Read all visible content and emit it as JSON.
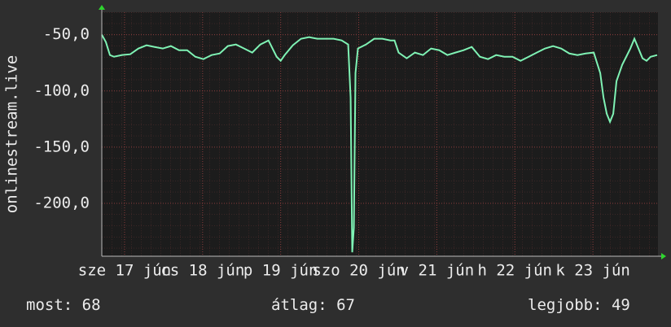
{
  "chart_data": {
    "type": "line",
    "y_label": "onlinestream.live",
    "xlim": [
      0,
      171
    ],
    "xticks": [
      {
        "value": 7,
        "label": "sze 17 jún"
      },
      {
        "value": 31,
        "label": "cs 18 jún"
      },
      {
        "value": 55,
        "label": "p 19 jún"
      },
      {
        "value": 79,
        "label": "szo 20 jún"
      },
      {
        "value": 103,
        "label": "v 21 jún"
      },
      {
        "value": 127,
        "label": "h 22 jún"
      },
      {
        "value": 151,
        "label": "k 23 jún"
      }
    ],
    "ylim": [
      -247,
      -30
    ],
    "yticks": [
      {
        "value": -50,
        "label": "-50,0"
      },
      {
        "value": -100,
        "label": "-100,0"
      },
      {
        "value": -150,
        "label": "-150,0"
      },
      {
        "value": -200,
        "label": "-200,0"
      }
    ],
    "grid": true,
    "series": [
      {
        "color": "#7ff2b4",
        "x": [
          0,
          1.25,
          2.5,
          3.75,
          6.25,
          8.75,
          11.25,
          13.75,
          16.25,
          18.75,
          21.25,
          23.75,
          26.25,
          28.75,
          31.25,
          33.75,
          36.25,
          38.75,
          41.25,
          43.75,
          46.25,
          48.75,
          51.25,
          53.75,
          55,
          56.25,
          58.75,
          61.25,
          63.75,
          66.25,
          68.75,
          71.25,
          73.75,
          75.75,
          76.5,
          77,
          77.5,
          78,
          78.75,
          81.25,
          83.75,
          86.25,
          88.75,
          90,
          91.25,
          93.75,
          96.25,
          98.75,
          101.25,
          103.75,
          106.25,
          108.75,
          111.25,
          113.75,
          116.25,
          118.75,
          121.25,
          123.75,
          126.25,
          128.75,
          131.25,
          133.75,
          136.25,
          138.75,
          141.25,
          143.75,
          146.25,
          148.75,
          151.25,
          153.25,
          154.25,
          155.25,
          156.25,
          157.25,
          158.25,
          160,
          161.25,
          162.5,
          163.75,
          165,
          166.25,
          167.5,
          168.75,
          170.75
        ],
        "values": [
          -50.0,
          -56.5,
          -68.1,
          -69.6,
          -68.1,
          -67.4,
          -62.3,
          -59.4,
          -60.9,
          -62.3,
          -60.1,
          -63.8,
          -63.8,
          -69.6,
          -71.7,
          -68.1,
          -66.7,
          -60.1,
          -58.7,
          -62.3,
          -65.9,
          -58.7,
          -55.1,
          -69.6,
          -73.2,
          -68.1,
          -59.4,
          -53.6,
          -52.2,
          -53.6,
          -53.6,
          -53.6,
          -55.1,
          -58.7,
          -105.8,
          -243.5,
          -221.7,
          -84.1,
          -62.3,
          -58.7,
          -53.6,
          -53.6,
          -55.1,
          -55.1,
          -65.9,
          -71.0,
          -65.9,
          -68.1,
          -62.3,
          -63.8,
          -68.1,
          -65.9,
          -63.8,
          -60.9,
          -69.6,
          -71.7,
          -68.1,
          -69.6,
          -69.6,
          -73.2,
          -69.6,
          -65.9,
          -62.3,
          -60.1,
          -62.3,
          -66.7,
          -68.1,
          -66.7,
          -65.9,
          -84.1,
          -105.8,
          -120.3,
          -127.5,
          -120.3,
          -91.3,
          -76.8,
          -69.6,
          -62.3,
          -53.6,
          -62.3,
          -71.0,
          -73.2,
          -69.6,
          -68.1
        ]
      }
    ]
  },
  "stats": [
    {
      "label": "most:",
      "value": 68
    },
    {
      "label": "átlag:",
      "value": 67
    },
    {
      "label": "legjobb:",
      "value": 49
    }
  ]
}
